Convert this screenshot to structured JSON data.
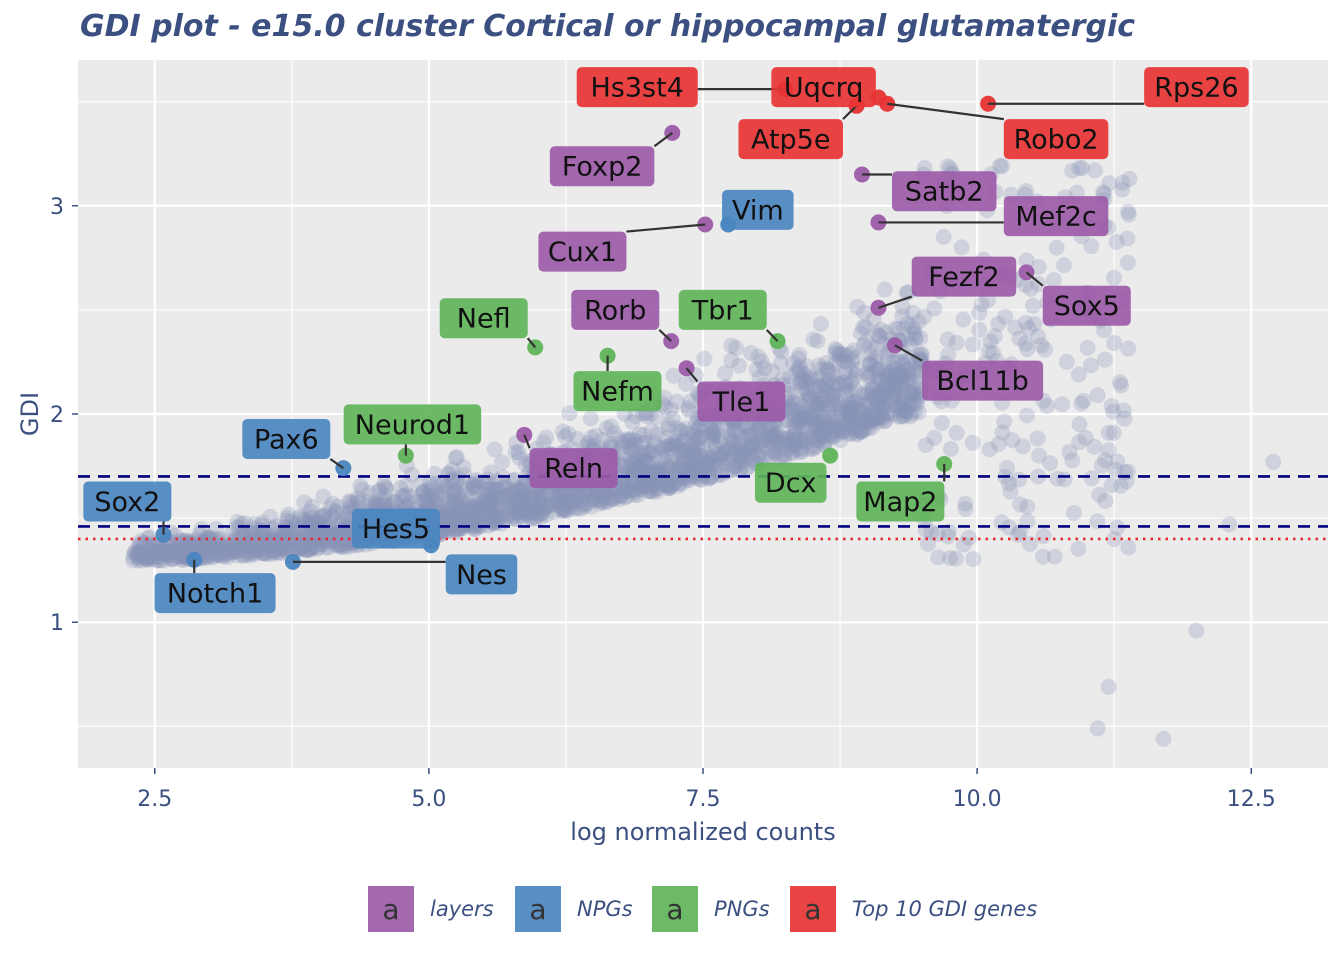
{
  "chart_data": {
    "type": "scatter",
    "title": "GDI plot - e15.0 cluster Cortical or hippocampal glutamatergic",
    "xlabel": "log normalized counts",
    "ylabel": "GDI",
    "xlim": [
      1.8,
      13.2
    ],
    "ylim": [
      0.3,
      3.7
    ],
    "x_ticks": [
      2.5,
      5.0,
      7.5,
      10.0,
      12.5
    ],
    "x_tick_labels": [
      "2.5",
      "5.0",
      "7.5",
      "10.0",
      "12.5"
    ],
    "y_ticks": [
      1,
      2,
      3
    ],
    "y_tick_labels": [
      "1",
      "2",
      "3"
    ],
    "grid": true,
    "panel_background": "#ebebeb",
    "background_points_color": "#8794b8",
    "hlines": [
      {
        "y": 1.7,
        "color": "#00007f",
        "style": "dashed"
      },
      {
        "y": 1.46,
        "color": "#00007f",
        "style": "dashed"
      },
      {
        "y": 1.4,
        "color": "#e8262b",
        "style": "dotted"
      }
    ],
    "legend": {
      "position": "bottom",
      "key_glyph": "a",
      "entries": [
        {
          "name": "layers",
          "color": "#9c5ba8"
        },
        {
          "name": "NPGs",
          "color": "#4a85c0"
        },
        {
          "name": "PNGs",
          "color": "#5fb459"
        },
        {
          "name": "Top 10 GDI genes",
          "color": "#e73333"
        }
      ]
    },
    "series": [
      {
        "name": "layers",
        "color": "#9c5ba8",
        "points": [
          {
            "gene": "Foxp2",
            "x": 7.22,
            "y": 3.35
          },
          {
            "gene": "Satb2",
            "x": 8.95,
            "y": 3.15
          },
          {
            "gene": "Cux1",
            "x": 7.52,
            "y": 2.91
          },
          {
            "gene": "Mef2c",
            "x": 9.1,
            "y": 2.92
          },
          {
            "gene": "Fezf2",
            "x": 9.1,
            "y": 2.51
          },
          {
            "gene": "Sox5",
            "x": 10.45,
            "y": 2.68
          },
          {
            "gene": "Rorb",
            "x": 7.21,
            "y": 2.35
          },
          {
            "gene": "Bcl11b",
            "x": 9.25,
            "y": 2.33
          },
          {
            "gene": "Tle1",
            "x": 7.35,
            "y": 2.22
          },
          {
            "gene": "Reln",
            "x": 5.87,
            "y": 1.9
          }
        ]
      },
      {
        "name": "NPGs",
        "color": "#4a85c0",
        "points": [
          {
            "gene": "Vim",
            "x": 7.73,
            "y": 2.91
          },
          {
            "gene": "Pax6",
            "x": 4.22,
            "y": 1.74
          },
          {
            "gene": "Sox2",
            "x": 2.58,
            "y": 1.42
          },
          {
            "gene": "Hes5",
            "x": 5.02,
            "y": 1.37
          },
          {
            "gene": "Notch1",
            "x": 2.86,
            "y": 1.3
          },
          {
            "gene": "Nes",
            "x": 3.76,
            "y": 1.29
          }
        ]
      },
      {
        "name": "PNGs",
        "color": "#5fb459",
        "points": [
          {
            "gene": "Nefl",
            "x": 5.97,
            "y": 2.32
          },
          {
            "gene": "Nefm",
            "x": 6.63,
            "y": 2.28
          },
          {
            "gene": "Tbr1",
            "x": 8.18,
            "y": 2.35
          },
          {
            "gene": "Neurod1",
            "x": 4.79,
            "y": 1.8
          },
          {
            "gene": "Dcx",
            "x": 8.66,
            "y": 1.8
          },
          {
            "gene": "Map2",
            "x": 9.7,
            "y": 1.76
          }
        ]
      },
      {
        "name": "Top 10 GDI genes",
        "color": "#e73333",
        "points": [
          {
            "gene": "Hs3st4",
            "x": 8.25,
            "y": 3.56
          },
          {
            "gene": "Uqcrq",
            "x": 9.1,
            "y": 3.52
          },
          {
            "gene": "Atp5e",
            "x": 8.9,
            "y": 3.48
          },
          {
            "gene": "Rps26",
            "x": 10.1,
            "y": 3.49
          },
          {
            "gene": "Robo2",
            "x": 9.18,
            "y": 3.49
          }
        ]
      }
    ],
    "labels": [
      {
        "text": "Hs3st4",
        "x": 6.9,
        "y": 3.57,
        "series": 3
      },
      {
        "text": "Uqcrq",
        "x": 8.6,
        "y": 3.57,
        "series": 3
      },
      {
        "text": "Rps26",
        "x": 12.0,
        "y": 3.57,
        "series": 3
      },
      {
        "text": "Atp5e",
        "x": 8.3,
        "y": 3.32,
        "series": 3
      },
      {
        "text": "Robo2",
        "x": 10.72,
        "y": 3.32,
        "series": 3
      },
      {
        "text": "Foxp2",
        "x": 6.58,
        "y": 3.19,
        "series": 0
      },
      {
        "text": "Satb2",
        "x": 9.7,
        "y": 3.07,
        "series": 0
      },
      {
        "text": "Vim",
        "x": 8.0,
        "y": 2.98,
        "series": 1
      },
      {
        "text": "Mef2c",
        "x": 10.72,
        "y": 2.95,
        "series": 0
      },
      {
        "text": "Cux1",
        "x": 6.4,
        "y": 2.78,
        "series": 0
      },
      {
        "text": "Fezf2",
        "x": 9.88,
        "y": 2.66,
        "series": 0
      },
      {
        "text": "Sox5",
        "x": 11.0,
        "y": 2.52,
        "series": 0
      },
      {
        "text": "Nefl",
        "x": 5.5,
        "y": 2.46,
        "series": 2
      },
      {
        "text": "Rorb",
        "x": 6.7,
        "y": 2.5,
        "series": 0
      },
      {
        "text": "Tbr1",
        "x": 7.68,
        "y": 2.5,
        "series": 2
      },
      {
        "text": "Bcl11b",
        "x": 10.05,
        "y": 2.16,
        "series": 0
      },
      {
        "text": "Nefm",
        "x": 6.72,
        "y": 2.11,
        "series": 2
      },
      {
        "text": "Tle1",
        "x": 7.85,
        "y": 2.06,
        "series": 0
      },
      {
        "text": "Neurod1",
        "x": 4.85,
        "y": 1.95,
        "series": 2
      },
      {
        "text": "Pax6",
        "x": 3.7,
        "y": 1.88,
        "series": 1
      },
      {
        "text": "Reln",
        "x": 6.32,
        "y": 1.74,
        "series": 0
      },
      {
        "text": "Dcx",
        "x": 8.3,
        "y": 1.67,
        "series": 2
      },
      {
        "text": "Map2",
        "x": 9.3,
        "y": 1.58,
        "series": 2
      },
      {
        "text": "Sox2",
        "x": 2.25,
        "y": 1.58,
        "series": 1
      },
      {
        "text": "Hes5",
        "x": 4.7,
        "y": 1.45,
        "series": 1
      },
      {
        "text": "Nes",
        "x": 5.48,
        "y": 1.23,
        "series": 1
      },
      {
        "text": "Notch1",
        "x": 3.05,
        "y": 1.14,
        "series": 1
      }
    ]
  }
}
